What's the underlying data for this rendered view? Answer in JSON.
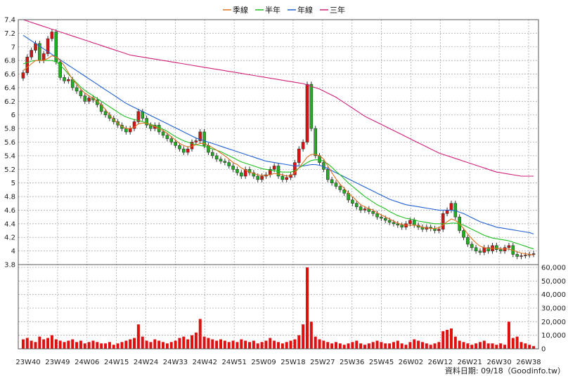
{
  "chart_data": {
    "type": "candlestick",
    "legend": [
      {
        "label": "季線",
        "color": "#e07020"
      },
      {
        "label": "半年",
        "color": "#20c020"
      },
      {
        "label": "年線",
        "color": "#2060d0"
      },
      {
        "label": "三年",
        "color": "#d0207a"
      }
    ],
    "legend_position": "top-center",
    "grid": true,
    "price_axis": {
      "ylim": [
        3.8,
        7.4
      ],
      "ticks": [
        3.8,
        4,
        4.2,
        4.4,
        4.6,
        4.8,
        5,
        5.2,
        5.4,
        5.6,
        5.8,
        6,
        6.2,
        6.4,
        6.6,
        6.8,
        7,
        7.2,
        7.4
      ]
    },
    "volume_axis": {
      "ylim": [
        0,
        60000
      ],
      "ticks": [
        0,
        10000,
        20000,
        30000,
        40000,
        50000,
        60000
      ],
      "tick_labels": [
        "0",
        "10,000",
        "20,000",
        "30,000",
        "40,000",
        "50,000",
        "60,000"
      ],
      "color": "#e01010"
    },
    "x_tick_labels": [
      "23W40",
      "23W49",
      "24W06",
      "24W15",
      "24W24",
      "24W33",
      "24W42",
      "24W51",
      "25W09",
      "25W18",
      "25W27",
      "25W36",
      "25W45",
      "26W02",
      "26W12",
      "26W21",
      "26W30",
      "26W38"
    ],
    "up_color": "#e01010",
    "down_color": "#20b020",
    "close_series": [
      6.62,
      6.85,
      6.95,
      7.05,
      6.8,
      6.9,
      7.12,
      7.22,
      6.78,
      6.55,
      6.5,
      6.52,
      6.4,
      6.35,
      6.28,
      6.2,
      6.25,
      6.22,
      6.15,
      6.05,
      6.0,
      5.95,
      5.9,
      5.85,
      5.8,
      5.75,
      5.8,
      5.9,
      6.05,
      5.95,
      5.85,
      5.8,
      5.85,
      5.75,
      5.7,
      5.65,
      5.6,
      5.55,
      5.5,
      5.45,
      5.5,
      5.6,
      5.62,
      5.75,
      5.55,
      5.45,
      5.4,
      5.35,
      5.32,
      5.3,
      5.25,
      5.2,
      5.15,
      5.1,
      5.2,
      5.15,
      5.1,
      5.05,
      5.1,
      5.12,
      5.2,
      5.25,
      5.1,
      5.05,
      5.08,
      5.12,
      5.3,
      5.5,
      5.6,
      6.45,
      5.8,
      5.4,
      5.3,
      5.2,
      5.05,
      5.0,
      4.95,
      4.9,
      4.85,
      4.75,
      4.7,
      4.65,
      4.6,
      4.62,
      4.58,
      4.55,
      4.5,
      4.48,
      4.45,
      4.42,
      4.4,
      4.38,
      4.35,
      4.4,
      4.45,
      4.38,
      4.35,
      4.32,
      4.35,
      4.33,
      4.3,
      4.32,
      4.55,
      4.6,
      4.7,
      4.5,
      4.3,
      4.2,
      4.1,
      4.05,
      4.0,
      3.98,
      4.05,
      4.0,
      4.08,
      4.02,
      4.0,
      4.05,
      4.08,
      3.95,
      3.92,
      3.93,
      3.94,
      3.95,
      3.96
    ],
    "ma_quarter": [
      6.65,
      6.7,
      6.75,
      6.8,
      6.8,
      6.8,
      6.83,
      6.87,
      6.85,
      6.8,
      6.72,
      6.62,
      6.52,
      6.45,
      6.38,
      6.32,
      6.28,
      6.25,
      6.2,
      6.15,
      6.08,
      6.0,
      5.93,
      5.88,
      5.83,
      5.8,
      5.8,
      5.82,
      5.87,
      5.88,
      5.88,
      5.85,
      5.83,
      5.8,
      5.77,
      5.73,
      5.68,
      5.63,
      5.58,
      5.55,
      5.53,
      5.54,
      5.56,
      5.58,
      5.58,
      5.55,
      5.52,
      5.48,
      5.44,
      5.4,
      5.35,
      5.3,
      5.27,
      5.22,
      5.19,
      5.16,
      5.14,
      5.12,
      5.11,
      5.11,
      5.12,
      5.14,
      5.13,
      5.12,
      5.1,
      5.11,
      5.15,
      5.22,
      5.3,
      5.38,
      5.42,
      5.42,
      5.4,
      5.35,
      5.25,
      5.15,
      5.06,
      4.98,
      4.92,
      4.85,
      4.8,
      4.74,
      4.68,
      4.65,
      4.62,
      4.6,
      4.56,
      4.53,
      4.5,
      4.47,
      4.44,
      4.41,
      4.39,
      4.38,
      4.38,
      4.38,
      4.37,
      4.35,
      4.34,
      4.33,
      4.33,
      4.34,
      4.38,
      4.43,
      4.47,
      4.45,
      4.4,
      4.33,
      4.25,
      4.18,
      4.12,
      4.07,
      4.05,
      4.04,
      4.04,
      4.04,
      4.03,
      4.03,
      4.03,
      4.01,
      3.99,
      3.97,
      3.96,
      3.95,
      3.94
    ],
    "ma_half": [
      6.75,
      6.77,
      6.79,
      6.8,
      6.8,
      6.8,
      6.8,
      6.8,
      6.78,
      6.73,
      6.67,
      6.6,
      6.53,
      6.47,
      6.41,
      6.36,
      6.32,
      6.28,
      6.24,
      6.2,
      6.16,
      6.12,
      6.08,
      6.04,
      6.0,
      5.97,
      5.95,
      5.93,
      5.92,
      5.9,
      5.88,
      5.86,
      5.84,
      5.82,
      5.79,
      5.76,
      5.72,
      5.68,
      5.65,
      5.62,
      5.6,
      5.58,
      5.56,
      5.55,
      5.54,
      5.52,
      5.5,
      5.48,
      5.46,
      5.43,
      5.4,
      5.37,
      5.34,
      5.31,
      5.29,
      5.27,
      5.25,
      5.23,
      5.21,
      5.2,
      5.19,
      5.18,
      5.17,
      5.16,
      5.16,
      5.16,
      5.18,
      5.22,
      5.26,
      5.3,
      5.33,
      5.34,
      5.34,
      5.32,
      5.28,
      5.23,
      5.17,
      5.12,
      5.06,
      5.0,
      4.95,
      4.9,
      4.85,
      4.8,
      4.76,
      4.72,
      4.68,
      4.65,
      4.62,
      4.58,
      4.55,
      4.52,
      4.5,
      4.48,
      4.47,
      4.46,
      4.44,
      4.43,
      4.42,
      4.41,
      4.4,
      4.4,
      4.4,
      4.4,
      4.41,
      4.41,
      4.4,
      4.38,
      4.35,
      4.32,
      4.29,
      4.26,
      4.23,
      4.21,
      4.19,
      4.18,
      4.17,
      4.16,
      4.15,
      4.13,
      4.11,
      4.09,
      4.07,
      4.05,
      4.03
    ],
    "ma_year": [
      7.17,
      7.13,
      7.09,
      7.05,
      7.01,
      6.97,
      6.93,
      6.89,
      6.85,
      6.81,
      6.77,
      6.73,
      6.69,
      6.65,
      6.61,
      6.57,
      6.53,
      6.49,
      6.45,
      6.41,
      6.37,
      6.33,
      6.29,
      6.25,
      6.21,
      6.17,
      6.14,
      6.11,
      6.08,
      6.05,
      6.02,
      5.99,
      5.96,
      5.93,
      5.9,
      5.87,
      5.84,
      5.81,
      5.78,
      5.75,
      5.72,
      5.69,
      5.66,
      5.64,
      5.62,
      5.6,
      5.58,
      5.56,
      5.54,
      5.52,
      5.5,
      5.48,
      5.46,
      5.44,
      5.42,
      5.4,
      5.38,
      5.36,
      5.34,
      5.32,
      5.31,
      5.3,
      5.29,
      5.28,
      5.27,
      5.26,
      5.25,
      5.25,
      5.25,
      5.26,
      5.27,
      5.27,
      5.26,
      5.24,
      5.21,
      5.18,
      5.15,
      5.12,
      5.09,
      5.06,
      5.03,
      5.0,
      4.97,
      4.94,
      4.91,
      4.88,
      4.85,
      4.82,
      4.79,
      4.76,
      4.74,
      4.72,
      4.7,
      4.68,
      4.67,
      4.66,
      4.65,
      4.64,
      4.63,
      4.62,
      4.61,
      4.6,
      4.6,
      4.6,
      4.6,
      4.59,
      4.57,
      4.55,
      4.52,
      4.49,
      4.46,
      4.43,
      4.41,
      4.39,
      4.37,
      4.35,
      4.34,
      4.33,
      4.32,
      4.31,
      4.3,
      4.29,
      4.28,
      4.27,
      4.25
    ],
    "ma_three_year": [
      7.4,
      7.38,
      7.36,
      7.34,
      7.32,
      7.3,
      7.28,
      7.26,
      7.24,
      7.22,
      7.2,
      7.18,
      7.16,
      7.14,
      7.12,
      7.1,
      7.08,
      7.06,
      7.04,
      7.02,
      7.0,
      6.98,
      6.96,
      6.94,
      6.92,
      6.9,
      6.88,
      6.87,
      6.86,
      6.85,
      6.84,
      6.83,
      6.82,
      6.81,
      6.8,
      6.79,
      6.78,
      6.77,
      6.76,
      6.75,
      6.74,
      6.73,
      6.72,
      6.71,
      6.7,
      6.69,
      6.68,
      6.67,
      6.66,
      6.65,
      6.64,
      6.63,
      6.62,
      6.61,
      6.6,
      6.59,
      6.58,
      6.57,
      6.56,
      6.55,
      6.54,
      6.53,
      6.52,
      6.51,
      6.5,
      6.49,
      6.48,
      6.47,
      6.46,
      6.44,
      6.42,
      6.4,
      6.38,
      6.35,
      6.32,
      6.29,
      6.26,
      6.22,
      6.18,
      6.14,
      6.1,
      6.06,
      6.02,
      5.98,
      5.95,
      5.92,
      5.89,
      5.86,
      5.83,
      5.8,
      5.77,
      5.74,
      5.71,
      5.68,
      5.65,
      5.62,
      5.59,
      5.56,
      5.53,
      5.5,
      5.47,
      5.44,
      5.42,
      5.4,
      5.38,
      5.36,
      5.34,
      5.32,
      5.3,
      5.28,
      5.26,
      5.24,
      5.22,
      5.2,
      5.18,
      5.16,
      5.15,
      5.14,
      5.13,
      5.12,
      5.11,
      5.1,
      5.1,
      5.1,
      5.1
    ],
    "volume": [
      7000,
      8000,
      6000,
      5000,
      9000,
      7000,
      8000,
      10000,
      7000,
      6000,
      5000,
      6000,
      7000,
      5000,
      6000,
      4000,
      5000,
      6000,
      5000,
      4000,
      4000,
      5000,
      3000,
      4000,
      5000,
      6000,
      7000,
      8000,
      18000,
      9000,
      6000,
      5000,
      7000,
      6000,
      5000,
      4000,
      5000,
      6000,
      8000,
      9000,
      7000,
      10000,
      12000,
      22000,
      9000,
      8000,
      7000,
      6000,
      7000,
      6000,
      5000,
      6000,
      5000,
      7000,
      6000,
      5000,
      6000,
      4000,
      5000,
      6000,
      8000,
      6000,
      5000,
      4000,
      5000,
      6000,
      7000,
      10000,
      18000,
      60000,
      20000,
      9000,
      7000,
      6000,
      5000,
      4000,
      5000,
      4000,
      3000,
      4000,
      5000,
      6000,
      4000,
      3000,
      4000,
      5000,
      6000,
      5000,
      4000,
      4000,
      5000,
      6000,
      4000,
      3000,
      5000,
      7000,
      6000,
      5000,
      4000,
      3000,
      4000,
      5000,
      13000,
      14000,
      15000,
      9000,
      6000,
      5000,
      4000,
      3000,
      4000,
      5000,
      6000,
      4000,
      4000,
      3000,
      4000,
      3000,
      20000,
      8000,
      9000,
      5000,
      4000,
      3000,
      2000
    ],
    "footer": "資料日期: 09/18（Goodinfo.tw）"
  }
}
